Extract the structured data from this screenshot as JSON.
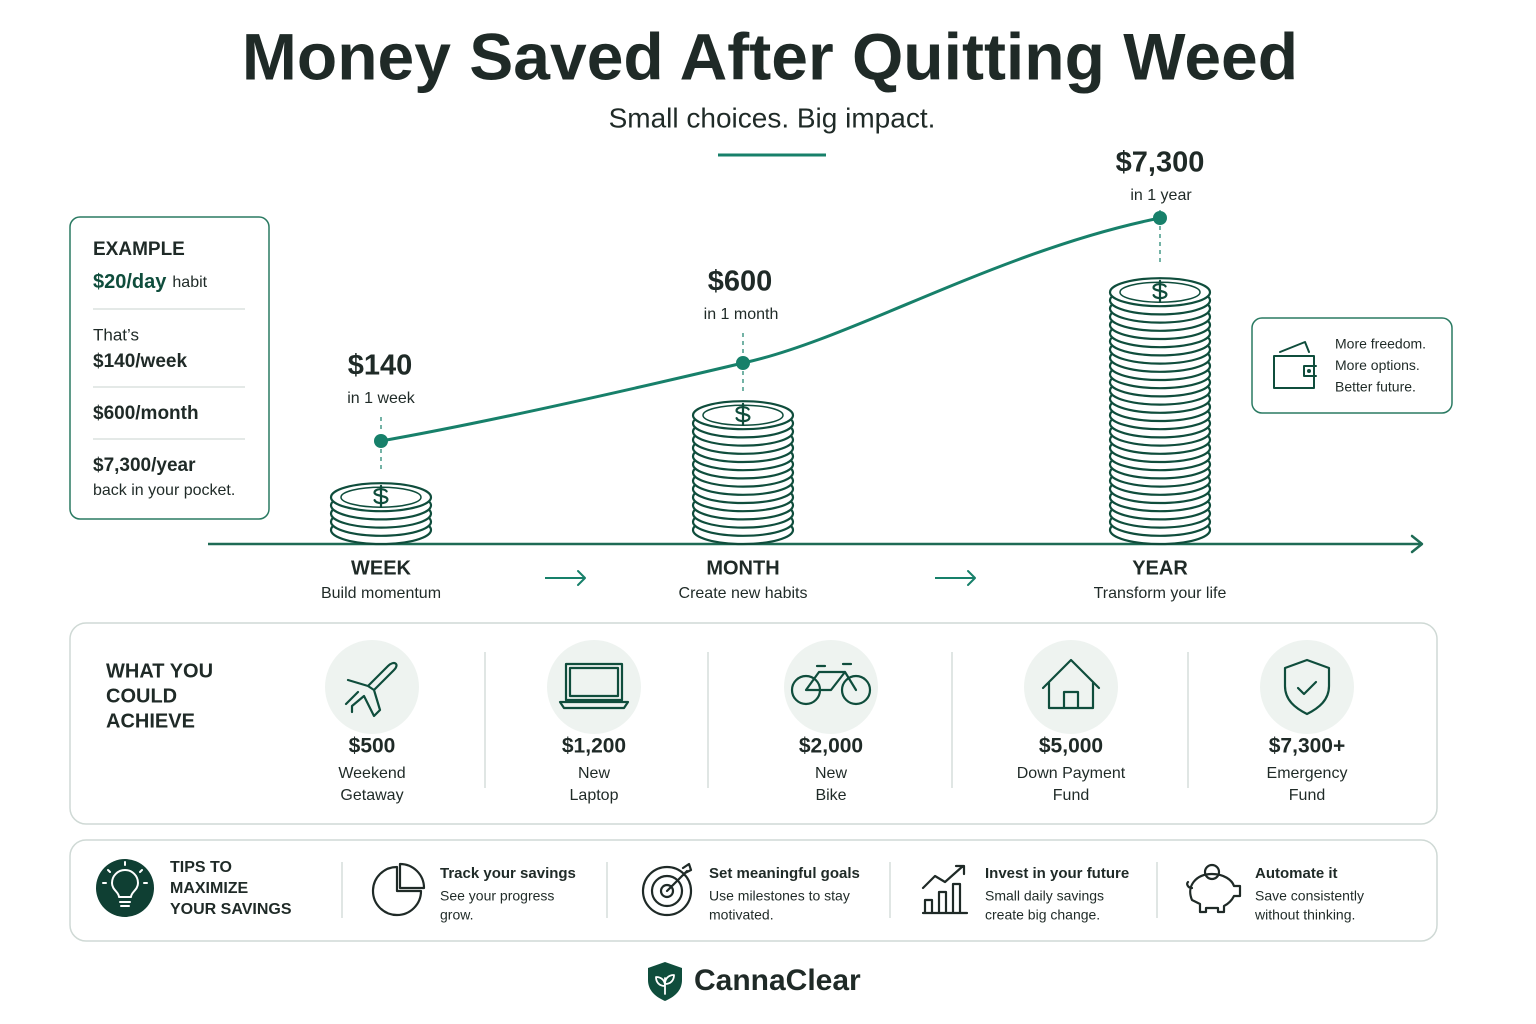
{
  "header": {
    "title": "Money Saved After Quitting Weed",
    "subtitle": "Small choices. Big impact."
  },
  "example": {
    "heading": "EXAMPLE",
    "daily": "$20/day",
    "daily_suffix": "habit",
    "intro": "That’s",
    "week": "$140/week",
    "month": "$600/month",
    "year": "$7,300/year",
    "note": "back in your pocket."
  },
  "milestones": [
    {
      "amount": "$140",
      "caption": "in 1 week",
      "label": "WEEK",
      "sublabel": "Build momentum"
    },
    {
      "amount": "$600",
      "caption": "in 1 month",
      "label": "MONTH",
      "sublabel": "Create new habits"
    },
    {
      "amount": "$7,300",
      "caption": "in 1 year",
      "label": "YEAR",
      "sublabel": "Transform your life"
    }
  ],
  "side_note": [
    "More freedom.",
    "More options.",
    "Better future."
  ],
  "achieve": {
    "title": [
      "WHAT YOU",
      "COULD",
      "ACHIEVE"
    ],
    "items": [
      {
        "amount": "$500",
        "label": [
          "Weekend",
          "Getaway"
        ]
      },
      {
        "amount": "$1,200",
        "label": [
          "New",
          "Laptop"
        ]
      },
      {
        "amount": "$2,000",
        "label": [
          "New",
          "Bike"
        ]
      },
      {
        "amount": "$5,000",
        "label": [
          "Down Payment",
          "Fund"
        ]
      },
      {
        "amount": "$7,300+",
        "label": [
          "Emergency",
          "Fund"
        ]
      }
    ]
  },
  "tips": {
    "title": [
      "TIPS TO",
      "MAXIMIZE",
      "YOUR SAVINGS"
    ],
    "items": [
      {
        "title": "Track your savings",
        "text": [
          "See your progress",
          "grow."
        ]
      },
      {
        "title": "Set meaningful goals",
        "text": [
          "Use milestones to stay",
          "motivated."
        ]
      },
      {
        "title": "Invest in your future",
        "text": [
          "Small daily savings",
          "create big change."
        ]
      },
      {
        "title": "Automate it",
        "text": [
          "Save consistently",
          "without thinking."
        ]
      }
    ]
  },
  "brand": "CannaClear"
}
